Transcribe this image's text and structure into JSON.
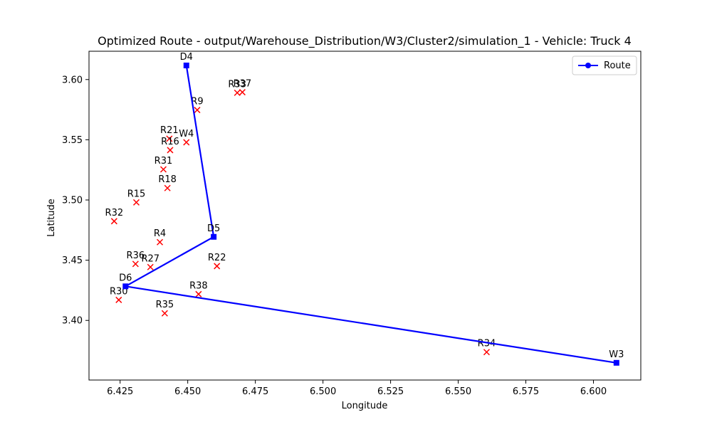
{
  "chart_data": {
    "type": "scatter",
    "title": "Optimized Route - output/Warehouse_Distribution/W3/Cluster2/simulation_1 - Vehicle: Truck 4",
    "xlabel": "Longitude",
    "ylabel": "Latitude",
    "xlim": [
      6.4135,
      6.6175
    ],
    "ylim": [
      3.3505,
      3.6235
    ],
    "xticks": [
      6.425,
      6.45,
      6.475,
      6.5,
      6.525,
      6.55,
      6.575,
      6.6
    ],
    "xtick_labels": [
      "6.425",
      "6.450",
      "6.475",
      "6.500",
      "6.525",
      "6.550",
      "6.575",
      "6.600"
    ],
    "yticks": [
      3.4,
      3.45,
      3.5,
      3.55,
      3.6
    ],
    "ytick_labels": [
      "3.40",
      "3.45",
      "3.50",
      "3.55",
      "3.60"
    ],
    "grid": false,
    "legend": {
      "position": "top-right",
      "entries": [
        {
          "label": "Route",
          "color": "#0000ff"
        }
      ]
    },
    "route": {
      "name": "Route",
      "color": "#0000ff",
      "points": [
        {
          "label": "D4",
          "x": 6.4495,
          "y": 3.6117
        },
        {
          "label": "D5",
          "x": 6.4596,
          "y": 3.4694
        },
        {
          "label": "D6",
          "x": 6.427,
          "y": 3.4283
        },
        {
          "label": "W3",
          "x": 6.6085,
          "y": 3.3648
        }
      ]
    },
    "customers": {
      "color": "#ff0000",
      "marker": "x",
      "points": [
        {
          "label": "R33",
          "x": 6.4683,
          "y": 3.589
        },
        {
          "label": "R37",
          "x": 6.4702,
          "y": 3.5895
        },
        {
          "label": "R9",
          "x": 6.4535,
          "y": 3.5747
        },
        {
          "label": "R21",
          "x": 6.4432,
          "y": 3.5509
        },
        {
          "label": "W4",
          "x": 6.4495,
          "y": 3.5479
        },
        {
          "label": "R16",
          "x": 6.4435,
          "y": 3.5414
        },
        {
          "label": "R31",
          "x": 6.441,
          "y": 3.5254
        },
        {
          "label": "R18",
          "x": 6.4425,
          "y": 3.5099
        },
        {
          "label": "R15",
          "x": 6.431,
          "y": 3.498
        },
        {
          "label": "R32",
          "x": 6.4228,
          "y": 3.4824
        },
        {
          "label": "R4",
          "x": 6.4397,
          "y": 3.465
        },
        {
          "label": "R36",
          "x": 6.4307,
          "y": 3.4469
        },
        {
          "label": "R27",
          "x": 6.4362,
          "y": 3.4443
        },
        {
          "label": "R22",
          "x": 6.4608,
          "y": 3.4451
        },
        {
          "label": "R30",
          "x": 6.4245,
          "y": 3.417
        },
        {
          "label": "R38",
          "x": 6.454,
          "y": 3.4218
        },
        {
          "label": "R35",
          "x": 6.4415,
          "y": 3.4059
        },
        {
          "label": "R34",
          "x": 6.5605,
          "y": 3.3737
        }
      ]
    }
  }
}
